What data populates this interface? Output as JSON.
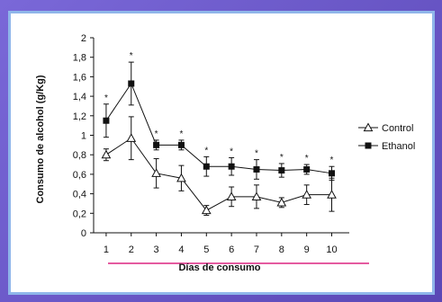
{
  "chart_data": {
    "type": "line",
    "xlabel": "Días de consumo",
    "ylabel": "Consumo de alcohol (g/Kg)",
    "x": [
      1,
      2,
      3,
      4,
      5,
      6,
      7,
      8,
      9,
      10
    ],
    "x_tick_labels": [
      "1",
      "2",
      "3",
      "4",
      "5",
      "6",
      "7",
      "8",
      "9",
      "10"
    ],
    "ylim": [
      0,
      2
    ],
    "y_ticks": [
      0,
      0.2,
      0.4,
      0.6,
      0.8,
      1,
      1.2,
      1.4,
      1.6,
      1.8,
      2
    ],
    "y_tick_labels": [
      "0",
      "0,2",
      "0,4",
      "0,6",
      "0,8",
      "1",
      "1,2",
      "1,4",
      "1,6",
      "1,8",
      "2"
    ],
    "series": [
      {
        "name": "Control",
        "marker": "open-triangle",
        "values": [
          0.8,
          0.97,
          0.61,
          0.56,
          0.23,
          0.37,
          0.37,
          0.31,
          0.39,
          0.39
        ],
        "errors": [
          0.06,
          0.22,
          0.15,
          0.13,
          0.05,
          0.1,
          0.12,
          0.05,
          0.1,
          0.17
        ]
      },
      {
        "name": "Ethanol",
        "marker": "filled-square",
        "values": [
          1.15,
          1.53,
          0.9,
          0.9,
          0.68,
          0.68,
          0.65,
          0.64,
          0.65,
          0.61
        ],
        "errors": [
          0.17,
          0.22,
          0.05,
          0.05,
          0.1,
          0.09,
          0.1,
          0.07,
          0.05,
          0.07
        ]
      }
    ],
    "annotations": [
      "*",
      "*",
      "*",
      "*",
      "*",
      "*",
      "*",
      "*",
      "*",
      "*"
    ],
    "legend_position": "right",
    "grid": false
  },
  "colors": {
    "frame": "#6a56c8",
    "panel_border": "#8fb6ea",
    "underline": "#e55ba0",
    "series": "#111111"
  }
}
